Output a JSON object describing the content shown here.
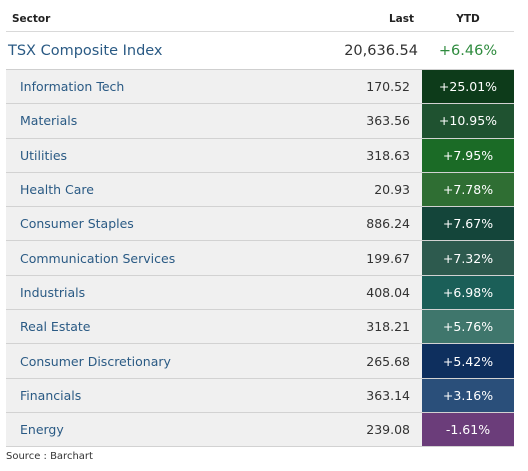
{
  "header": {
    "sector_label": "Sector",
    "last_label": "Last",
    "ytd_label": "YTD"
  },
  "index": {
    "name": "TSX Composite Index",
    "last": "20,636.54",
    "ytd": "+6.46%"
  },
  "sectors": [
    {
      "name": "Information Tech",
      "last": "170.52",
      "ytd": "+25.01%",
      "color": "#0d3b1a"
    },
    {
      "name": "Materials",
      "last": "363.56",
      "ytd": "+10.95%",
      "color": "#1f5230"
    },
    {
      "name": "Utilities",
      "last": "318.63",
      "ytd": "+7.95%",
      "color": "#1b6b26"
    },
    {
      "name": "Health Care",
      "last": "20.93",
      "ytd": "+7.78%",
      "color": "#2f6e33"
    },
    {
      "name": "Consumer Staples",
      "last": "886.24",
      "ytd": "+7.67%",
      "color": "#14453a"
    },
    {
      "name": "Communication Services",
      "last": "199.67",
      "ytd": "+7.32%",
      "color": "#2d5a4e"
    },
    {
      "name": "Industrials",
      "last": "408.04",
      "ytd": "+6.98%",
      "color": "#1b5f58"
    },
    {
      "name": "Real Estate",
      "last": "318.21",
      "ytd": "+5.76%",
      "color": "#3f766c"
    },
    {
      "name": "Consumer Discretionary",
      "last": "265.68",
      "ytd": "+5.42%",
      "color": "#0e2f5e"
    },
    {
      "name": "Financials",
      "last": "363.14",
      "ytd": "+3.16%",
      "color": "#2a4f7a"
    },
    {
      "name": "Energy",
      "last": "239.08",
      "ytd": "-1.61%",
      "color": "#6b3d7a"
    }
  ],
  "source": "Source : Barchart"
}
